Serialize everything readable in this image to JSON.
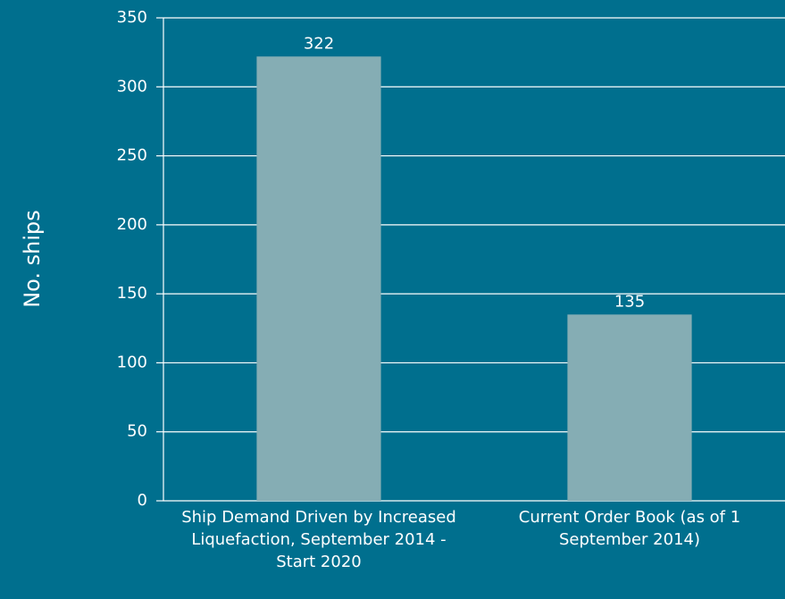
{
  "chart_data": {
    "type": "bar",
    "y_label": "No. ships",
    "categories": [
      "Ship Demand Driven by Increased Liquefaction, September 2014 - Start 2020",
      "Current Order Book (as of 1 September 2014)"
    ],
    "values": [
      322,
      135
    ],
    "color": "#85adb4",
    "ylim": [
      0,
      350
    ],
    "yticks": [
      0,
      50,
      100,
      150,
      200,
      250,
      300,
      350
    ],
    "grid": true
  }
}
